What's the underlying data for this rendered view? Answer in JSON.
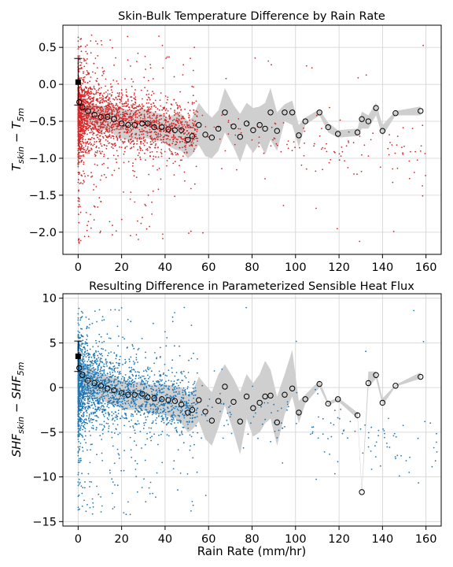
{
  "chart_data": [
    {
      "type": "scatter",
      "title": "Skin-Bulk Temperature Difference by Rain Rate",
      "xlabel": "",
      "ylabel": "T_skin − T_5m",
      "xlim": [
        -7,
        167
      ],
      "ylim": [
        -2.3,
        0.8
      ],
      "xticks": [
        0,
        20,
        40,
        60,
        80,
        100,
        120,
        140,
        160
      ],
      "yticks": [
        0.5,
        0.0,
        -0.5,
        -1.0,
        -1.5,
        -2.0
      ],
      "ytick_labels": [
        "0.5",
        "0.0",
        "−0.5",
        "−1.0",
        "−1.5",
        "−2.0"
      ],
      "grid": true,
      "colors": {
        "points": "#d62728",
        "band": "#cfcfcf",
        "marker": "#000000"
      },
      "reference_point": {
        "x": 0,
        "y": 0.03,
        "err_low": -0.28,
        "err_high": 0.35
      },
      "scatter_summary": {
        "dense_mean": -0.4,
        "dense_spread": 0.2,
        "x_max": 165,
        "y_min": -2.15,
        "y_max": 0.67
      },
      "bin_means": {
        "x": [
          0.5,
          2,
          4.5,
          7.5,
          10.5,
          13.5,
          16.5,
          20,
          23,
          26,
          29.5,
          32,
          35,
          38.5,
          41.5,
          44.5,
          47.5,
          50.5,
          52.5,
          55.5,
          58.5,
          61.5,
          64.5,
          67.5,
          71.5,
          74.5,
          77.5,
          80.5,
          83.5,
          86,
          88.5,
          91.5,
          95,
          98.5,
          101.5,
          104.5,
          111,
          115,
          119.5,
          128.5,
          130.5,
          133.5,
          137,
          140,
          146,
          157.5
        ],
        "y": [
          -0.24,
          -0.31,
          -0.36,
          -0.41,
          -0.44,
          -0.44,
          -0.47,
          -0.53,
          -0.55,
          -0.55,
          -0.53,
          -0.53,
          -0.58,
          -0.58,
          -0.61,
          -0.62,
          -0.62,
          -0.75,
          -0.7,
          -0.55,
          -0.68,
          -0.72,
          -0.6,
          -0.38,
          -0.57,
          -0.71,
          -0.53,
          -0.62,
          -0.55,
          -0.6,
          -0.38,
          -0.63,
          -0.38,
          -0.38,
          -0.69,
          -0.5,
          -0.38,
          -0.58,
          -0.67,
          -0.65,
          -0.47,
          -0.5,
          -0.32,
          -0.63,
          -0.39,
          -0.36
        ],
        "band_low": [
          -0.39,
          -0.43,
          -0.5,
          -0.56,
          -0.62,
          -0.62,
          -0.68,
          -0.73,
          -0.75,
          -0.75,
          -0.73,
          -0.73,
          -0.77,
          -0.77,
          -0.83,
          -0.88,
          -0.9,
          -1.0,
          -0.95,
          -0.82,
          -0.97,
          -1.0,
          -0.9,
          -0.65,
          -0.85,
          -1.05,
          -0.8,
          -0.93,
          -0.8,
          -0.95,
          -0.75,
          -0.9,
          -0.5,
          -0.55,
          -0.85,
          -0.55,
          -0.42,
          -0.65,
          -0.72,
          -0.7,
          -0.6,
          -0.6,
          -0.42,
          -0.7,
          -0.42,
          -0.42
        ],
        "band_high": [
          -0.1,
          -0.18,
          -0.24,
          -0.28,
          -0.29,
          -0.3,
          -0.32,
          -0.33,
          -0.34,
          -0.35,
          -0.33,
          -0.34,
          -0.38,
          -0.4,
          -0.45,
          -0.4,
          -0.4,
          -0.5,
          -0.45,
          -0.25,
          -0.37,
          -0.45,
          -0.35,
          -0.05,
          -0.28,
          -0.4,
          -0.25,
          -0.32,
          -0.3,
          -0.25,
          -0.05,
          -0.38,
          -0.27,
          -0.22,
          -0.55,
          -0.45,
          -0.34,
          -0.52,
          -0.62,
          -0.6,
          -0.37,
          -0.42,
          -0.25,
          -0.55,
          -0.36,
          -0.3
        ]
      }
    },
    {
      "type": "scatter",
      "title": "Resulting Difference in Parameterized Sensible Heat Flux",
      "xlabel": "Rain Rate (mm/hr)",
      "ylabel": "SHF_skin − SHF_5m",
      "xlim": [
        -7,
        167
      ],
      "ylim": [
        -15.5,
        10.5
      ],
      "xticks": [
        0,
        20,
        40,
        60,
        80,
        100,
        120,
        140,
        160
      ],
      "yticks": [
        10,
        5,
        0,
        -5,
        -10,
        -15
      ],
      "ytick_labels": [
        "10",
        "5",
        "0",
        "−5",
        "−10",
        "−15"
      ],
      "grid": true,
      "colors": {
        "points": "#1f77b4",
        "band": "#cfcfcf",
        "marker": "#000000"
      },
      "reference_point": {
        "x": 0,
        "y": 3.5,
        "err_low": 1.8,
        "err_high": 5.2
      },
      "scatter_summary": {
        "dense_mean": 0.5,
        "dense_spread": 1.8,
        "x_max": 165,
        "y_min": -14.3,
        "y_max": 9.0
      },
      "bin_means": {
        "x": [
          0.5,
          2,
          4.5,
          7.5,
          10.5,
          13.5,
          16.5,
          20,
          23,
          26,
          29.5,
          32,
          35,
          38.5,
          41.5,
          44.5,
          47.5,
          50.5,
          52.5,
          55.5,
          58.5,
          61.5,
          64.5,
          67.5,
          71.5,
          74.5,
          77.5,
          80.5,
          83.5,
          86,
          88.5,
          91.5,
          95,
          98.5,
          101.5,
          104.5,
          111,
          115,
          119.5,
          128.5,
          130.5,
          133.5,
          137,
          140,
          146,
          157.5
        ],
        "y": [
          2.2,
          1.4,
          0.8,
          0.5,
          0.2,
          -0.1,
          -0.3,
          -0.6,
          -0.8,
          -0.8,
          -0.7,
          -1.1,
          -1.2,
          -1.3,
          -1.4,
          -1.5,
          -1.9,
          -2.8,
          -2.5,
          -1.4,
          -2.7,
          -3.7,
          -1.5,
          0.1,
          -1.6,
          -3.8,
          -1.0,
          -2.3,
          -1.7,
          -1.0,
          -0.9,
          -3.9,
          -0.8,
          -0.1,
          -2.8,
          -1.3,
          0.4,
          -1.8,
          -1.3,
          -3.1,
          -11.7,
          0.5,
          1.4,
          -1.7,
          0.2,
          1.2
        ],
        "band_low": [
          0.8,
          0.0,
          -0.7,
          -1.1,
          -1.4,
          -1.7,
          -2.0,
          -2.3,
          -2.5,
          -2.5,
          -2.4,
          -2.8,
          -2.9,
          -3.0,
          -3.2,
          -3.4,
          -4.0,
          -5.0,
          -4.7,
          -3.8,
          -5.8,
          -6.5,
          -4.5,
          -2.0,
          -5.0,
          -7.5,
          -3.5,
          -5.5,
          -5.0,
          -4.0,
          -3.5,
          -6.5,
          -3.0,
          -1.0,
          -4.0,
          -1.8,
          0.0,
          -2.0,
          -1.5,
          -3.5,
          -12.0,
          0.0,
          1.0,
          -2.0,
          0.1,
          1.0
        ],
        "band_high": [
          3.6,
          2.6,
          2.2,
          1.9,
          1.6,
          1.4,
          1.1,
          0.8,
          0.6,
          0.6,
          0.7,
          0.4,
          0.3,
          0.4,
          0.3,
          0.2,
          0.0,
          -0.8,
          -0.5,
          1.2,
          0.3,
          -0.5,
          1.5,
          2.6,
          1.0,
          -0.5,
          1.5,
          0.5,
          1.5,
          3.0,
          2.0,
          -1.0,
          1.5,
          4.2,
          -1.5,
          -0.8,
          0.8,
          -1.6,
          -1.1,
          -2.8,
          -11.3,
          1.8,
          1.8,
          -1.2,
          0.3,
          1.7
        ]
      }
    }
  ]
}
